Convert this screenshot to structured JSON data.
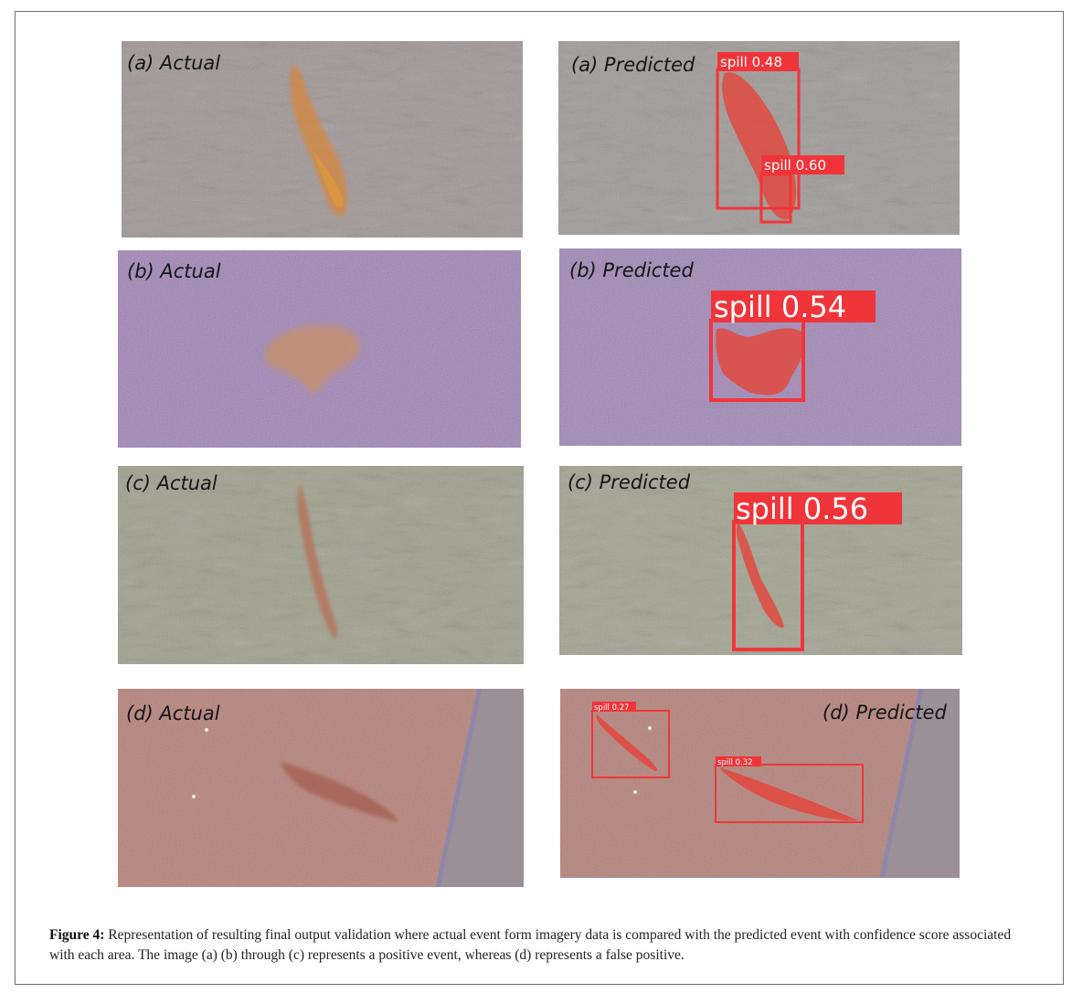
{
  "figure": {
    "number_label": "Figure 4:",
    "caption": "Representation of resulting final output validation where actual event form imagery data is compared with the predicted event with confidence score associated with each area. The image (a) (b) through (c) represents a positive event, whereas (d) represents a false positive."
  },
  "panels": {
    "a_actual": {
      "label": "(a) Actual"
    },
    "a_predicted": {
      "label": "(a) Predicted",
      "detections": [
        "spill 0.48",
        "spill 0.60"
      ]
    },
    "b_actual": {
      "label": "(b) Actual"
    },
    "b_predicted": {
      "label": "(b) Predicted",
      "detections": [
        "spill 0.54"
      ]
    },
    "c_actual": {
      "label": "(c) Actual"
    },
    "c_predicted": {
      "label": "(c) Predicted",
      "detections": [
        "spill 0.56"
      ]
    },
    "d_actual": {
      "label": "(d) Actual"
    },
    "d_predicted": {
      "label": "(d) Predicted",
      "detections": [
        "spill 0.27",
        "spill 0.32"
      ]
    }
  },
  "colors": {
    "background_a": "#a09595",
    "background_b": "#9a75b6",
    "background_c": "#9fa08c",
    "background_d": "#b68179",
    "box": "#f0353a"
  }
}
